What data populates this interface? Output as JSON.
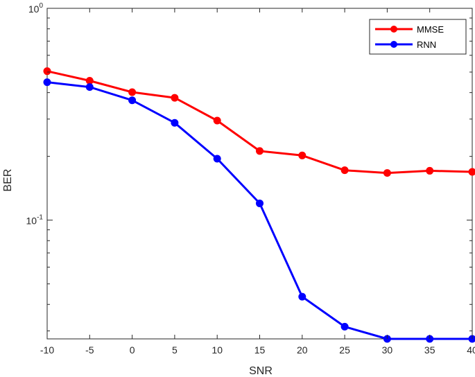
{
  "chart_data": {
    "type": "line",
    "x": [
      -10,
      -5,
      0,
      5,
      10,
      15,
      20,
      25,
      30,
      35,
      40
    ],
    "series": [
      {
        "name": "MMSE",
        "color": "#ff0000",
        "values": [
          0.505,
          0.455,
          0.402,
          0.378,
          0.295,
          0.212,
          0.202,
          0.172,
          0.167,
          0.171,
          0.169
        ]
      },
      {
        "name": "RNN",
        "color": "#0000ff",
        "values": [
          0.448,
          0.425,
          0.368,
          0.288,
          0.195,
          0.12,
          0.0435,
          0.0314,
          0.0275,
          0.0275,
          0.0275
        ]
      }
    ],
    "xlabel": "SNR",
    "ylabel": "BER",
    "xlim": [
      -10,
      40
    ],
    "ylim": [
      0.0275,
      1
    ],
    "y_scale": "log",
    "xticks": [
      "-10",
      "-5",
      "0",
      "5",
      "10",
      "15",
      "20",
      "25",
      "30",
      "35",
      "40"
    ],
    "yticks": [
      {
        "value": 1,
        "base": "10",
        "exp": "0"
      },
      {
        "value": 0.1,
        "base": "10",
        "exp": "-1"
      }
    ],
    "grid": false,
    "legend_position": "top-right"
  }
}
